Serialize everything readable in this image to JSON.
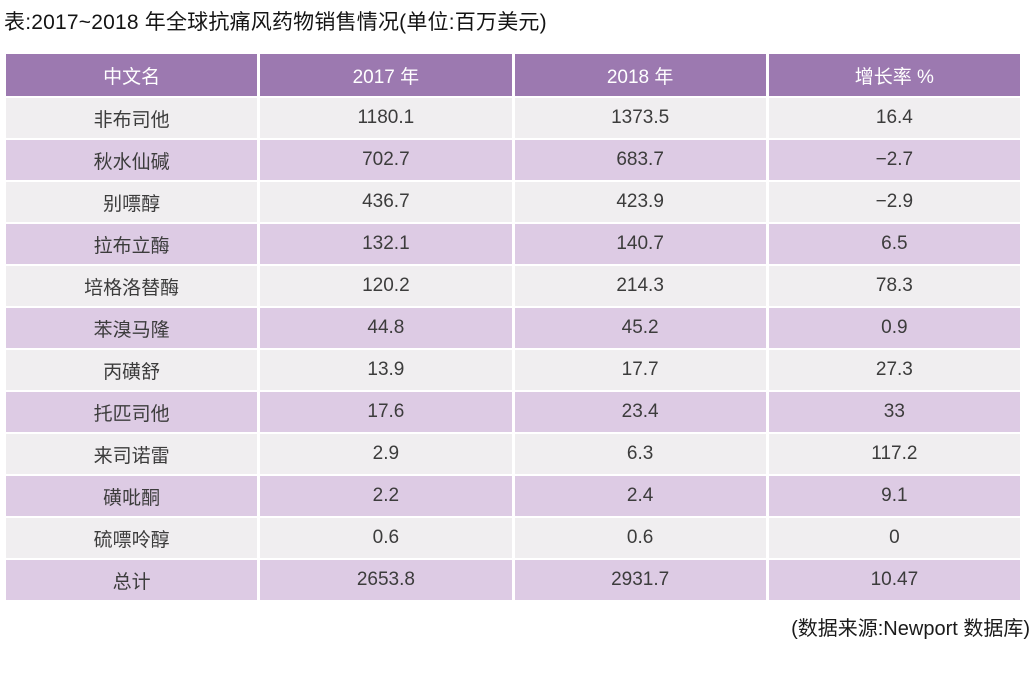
{
  "chart_data": {
    "type": "table",
    "title": "表:2017~2018 年全球抗痛风药物销售情况(单位:百万美元)",
    "columns": [
      "中文名",
      "2017 年",
      "2018 年",
      "增长率 %"
    ],
    "rows": [
      [
        "非布司他",
        "1180.1",
        "1373.5",
        "16.4"
      ],
      [
        "秋水仙碱",
        "702.7",
        "683.7",
        "−2.7"
      ],
      [
        "别嘌醇",
        "436.7",
        "423.9",
        "−2.9"
      ],
      [
        "拉布立酶",
        "132.1",
        "140.7",
        "6.5"
      ],
      [
        "培格洛替酶",
        "120.2",
        "214.3",
        "78.3"
      ],
      [
        "苯溴马隆",
        "44.8",
        "45.2",
        "0.9"
      ],
      [
        "丙磺舒",
        "13.9",
        "17.7",
        "27.3"
      ],
      [
        "托匹司他",
        "17.6",
        "23.4",
        "33"
      ],
      [
        "来司诺雷",
        "2.9",
        "6.3",
        "117.2"
      ],
      [
        "磺吡酮",
        "2.2",
        "2.4",
        "9.1"
      ],
      [
        "硫嘌呤醇",
        "0.6",
        "0.6",
        "0"
      ],
      [
        "总计",
        "2653.8",
        "2931.7",
        "10.47"
      ]
    ],
    "source": "(数据来源:Newport 数据库)",
    "layout": {
      "column_widths_pct": [
        25,
        25,
        25,
        25
      ],
      "row_striping": "light/pink alternating, totals row pink"
    },
    "colors": {
      "header_bg": "#9c79b0",
      "header_text": "#ffffff",
      "row_light_bg": "#f0eef0",
      "row_pink_bg": "#ddcbe4",
      "body_text": "#3c3c3c",
      "separator": "#ffffff"
    }
  }
}
